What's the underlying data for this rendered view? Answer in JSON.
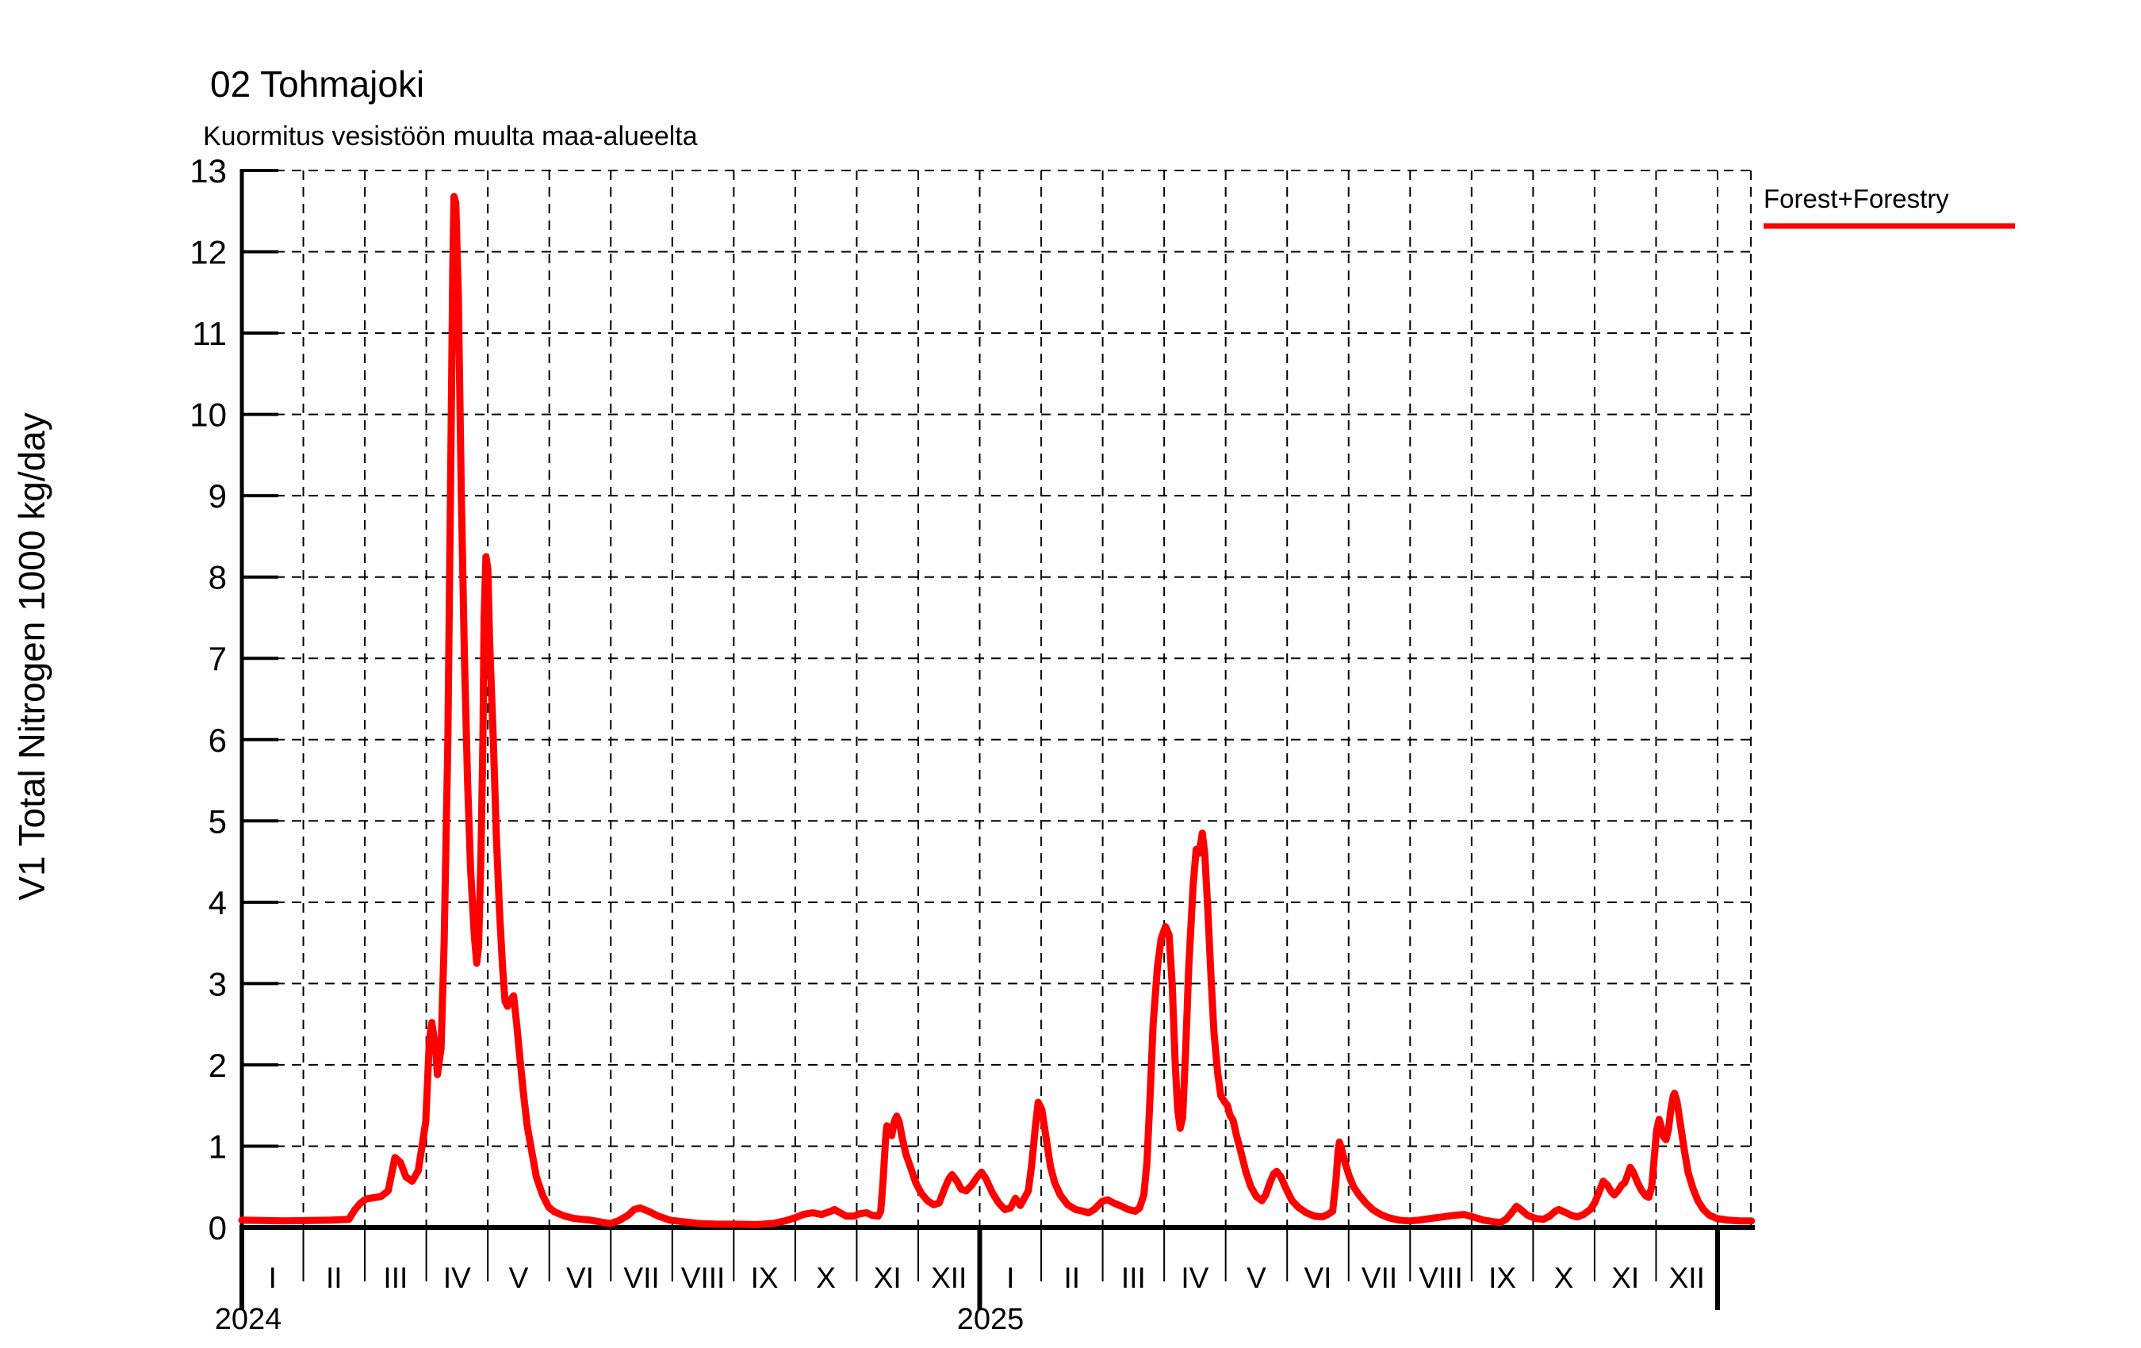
{
  "title": "02 Tohmajoki",
  "subtitle": "Kuormitus vesistöön muulta maa-alueelta",
  "y_axis": {
    "label": "V1 Total Nitrogen 1000 kg/day",
    "min": 0,
    "max": 13,
    "ticks": [
      0,
      1,
      2,
      3,
      4,
      5,
      6,
      7,
      8,
      9,
      10,
      11,
      12,
      13
    ]
  },
  "x_axis": {
    "month_labels": [
      "I",
      "II",
      "III",
      "IV",
      "V",
      "VI",
      "VII",
      "VIII",
      "IX",
      "X",
      "XI",
      "XII"
    ],
    "years": [
      {
        "label": "2024"
      },
      {
        "label": "2025"
      }
    ]
  },
  "legend": {
    "label": "Forest+Forestry"
  },
  "colors": {
    "series": "#ff0000",
    "axis": "#000000",
    "grid": "#000000",
    "background": "#ffffff"
  },
  "chart_data": {
    "type": "line",
    "title": "02 Tohmajoki",
    "subtitle": "Kuormitus vesistöön muulta maa-alueelta",
    "ylabel": "V1 Total Nitrogen 1000 kg/day",
    "ylim": [
      0,
      13
    ],
    "x_unit": "months since 2024-01-01",
    "xlim": [
      0,
      24.55
    ],
    "grid": true,
    "legend_position": "top-right",
    "x_tick_labels_2024": [
      "I",
      "II",
      "III",
      "IV",
      "V",
      "VI",
      "VII",
      "VIII",
      "IX",
      "X",
      "XI",
      "XII"
    ],
    "x_tick_labels_2025": [
      "I",
      "II",
      "III",
      "IV",
      "V",
      "VI",
      "VII",
      "VIII",
      "IX",
      "X",
      "XI",
      "XII"
    ],
    "series": [
      {
        "name": "Forest+Forestry",
        "color": "#ff0000",
        "points": [
          [
            0,
            0.09
          ],
          [
            0.7,
            0.08
          ],
          [
            1.45,
            0.09
          ],
          [
            1.74,
            0.1
          ],
          [
            1.84,
            0.22
          ],
          [
            1.93,
            0.3
          ],
          [
            2.02,
            0.35
          ],
          [
            2.26,
            0.38
          ],
          [
            2.38,
            0.45
          ],
          [
            2.49,
            0.86
          ],
          [
            2.58,
            0.8
          ],
          [
            2.67,
            0.62
          ],
          [
            2.77,
            0.57
          ],
          [
            2.87,
            0.7
          ],
          [
            2.99,
            1.3
          ],
          [
            3.05,
            2.3
          ],
          [
            3.09,
            2.52
          ],
          [
            3.15,
            2.2
          ],
          [
            3.18,
            1.88
          ],
          [
            3.24,
            2.2
          ],
          [
            3.29,
            3.5
          ],
          [
            3.35,
            6
          ],
          [
            3.4,
            9.5
          ],
          [
            3.43,
            11.8
          ],
          [
            3.45,
            12.68
          ],
          [
            3.48,
            12.6
          ],
          [
            3.52,
            11.5
          ],
          [
            3.57,
            9
          ],
          [
            3.62,
            7
          ],
          [
            3.67,
            5.5
          ],
          [
            3.72,
            4.4
          ],
          [
            3.78,
            3.6
          ],
          [
            3.82,
            3.25
          ],
          [
            3.85,
            3.45
          ],
          [
            3.89,
            4.6
          ],
          [
            3.92,
            6
          ],
          [
            3.94,
            7.5
          ],
          [
            3.97,
            8.25
          ],
          [
            4,
            8.1
          ],
          [
            4.03,
            7.2
          ],
          [
            4.09,
            6
          ],
          [
            4.14,
            4.8
          ],
          [
            4.19,
            3.9
          ],
          [
            4.24,
            3.2
          ],
          [
            4.28,
            2.78
          ],
          [
            4.32,
            2.72
          ],
          [
            4.37,
            2.8
          ],
          [
            4.42,
            2.85
          ],
          [
            4.47,
            2.5
          ],
          [
            4.52,
            2.1
          ],
          [
            4.58,
            1.65
          ],
          [
            4.64,
            1.25
          ],
          [
            4.7,
            1
          ],
          [
            4.79,
            0.62
          ],
          [
            4.89,
            0.4
          ],
          [
            4.99,
            0.25
          ],
          [
            5.09,
            0.19
          ],
          [
            5.25,
            0.14
          ],
          [
            5.41,
            0.11
          ],
          [
            5.67,
            0.09
          ],
          [
            5.89,
            0.06
          ],
          [
            5.99,
            0.05
          ],
          [
            6.12,
            0.08
          ],
          [
            6.28,
            0.15
          ],
          [
            6.38,
            0.22
          ],
          [
            6.48,
            0.24
          ],
          [
            6.61,
            0.2
          ],
          [
            6.77,
            0.14
          ],
          [
            6.96,
            0.09
          ],
          [
            7.18,
            0.07
          ],
          [
            7.41,
            0.05
          ],
          [
            7.73,
            0.04
          ],
          [
            8.06,
            0.04
          ],
          [
            8.38,
            0.035
          ],
          [
            8.64,
            0.05
          ],
          [
            8.83,
            0.08
          ],
          [
            9,
            0.12
          ],
          [
            9.13,
            0.16
          ],
          [
            9.28,
            0.18
          ],
          [
            9.43,
            0.16
          ],
          [
            9.58,
            0.2
          ],
          [
            9.64,
            0.22
          ],
          [
            9.73,
            0.18
          ],
          [
            9.83,
            0.14
          ],
          [
            9.96,
            0.14
          ],
          [
            10.05,
            0.17
          ],
          [
            10.16,
            0.18
          ],
          [
            10.25,
            0.15
          ],
          [
            10.35,
            0.14
          ],
          [
            10.39,
            0.2
          ],
          [
            10.43,
            0.6
          ],
          [
            10.47,
            1.1
          ],
          [
            10.49,
            1.25
          ],
          [
            10.53,
            1.18
          ],
          [
            10.57,
            1.13
          ],
          [
            10.61,
            1.3
          ],
          [
            10.65,
            1.37
          ],
          [
            10.69,
            1.3
          ],
          [
            10.74,
            1.1
          ],
          [
            10.8,
            0.9
          ],
          [
            10.87,
            0.75
          ],
          [
            10.96,
            0.55
          ],
          [
            11.05,
            0.42
          ],
          [
            11.15,
            0.33
          ],
          [
            11.25,
            0.28
          ],
          [
            11.34,
            0.3
          ],
          [
            11.43,
            0.48
          ],
          [
            11.5,
            0.6
          ],
          [
            11.55,
            0.65
          ],
          [
            11.63,
            0.57
          ],
          [
            11.7,
            0.47
          ],
          [
            11.78,
            0.45
          ],
          [
            11.87,
            0.52
          ],
          [
            11.96,
            0.62
          ],
          [
            12.03,
            0.68
          ],
          [
            12.1,
            0.6
          ],
          [
            12.21,
            0.42
          ],
          [
            12.31,
            0.3
          ],
          [
            12.41,
            0.22
          ],
          [
            12.5,
            0.24
          ],
          [
            12.58,
            0.36
          ],
          [
            12.66,
            0.27
          ],
          [
            12.79,
            0.45
          ],
          [
            12.85,
            0.8
          ],
          [
            12.9,
            1.2
          ],
          [
            12.95,
            1.54
          ],
          [
            13.01,
            1.45
          ],
          [
            13.07,
            1.15
          ],
          [
            13.15,
            0.75
          ],
          [
            13.22,
            0.55
          ],
          [
            13.31,
            0.4
          ],
          [
            13.43,
            0.28
          ],
          [
            13.56,
            0.22
          ],
          [
            13.68,
            0.2
          ],
          [
            13.77,
            0.18
          ],
          [
            13.86,
            0.22
          ],
          [
            13.99,
            0.32
          ],
          [
            14.08,
            0.34
          ],
          [
            14.18,
            0.3
          ],
          [
            14.31,
            0.26
          ],
          [
            14.42,
            0.22
          ],
          [
            14.53,
            0.2
          ],
          [
            14.6,
            0.24
          ],
          [
            14.67,
            0.4
          ],
          [
            14.72,
            0.8
          ],
          [
            14.77,
            1.6
          ],
          [
            14.82,
            2.5
          ],
          [
            14.89,
            3.2
          ],
          [
            14.95,
            3.55
          ],
          [
            15.02,
            3.7
          ],
          [
            15.08,
            3.6
          ],
          [
            15.13,
            3
          ],
          [
            15.18,
            2
          ],
          [
            15.22,
            1.45
          ],
          [
            15.26,
            1.22
          ],
          [
            15.3,
            1.35
          ],
          [
            15.35,
            2.2
          ],
          [
            15.4,
            3.2
          ],
          [
            15.47,
            4.2
          ],
          [
            15.52,
            4.65
          ],
          [
            15.56,
            4.6
          ],
          [
            15.6,
            4.75
          ],
          [
            15.62,
            4.85
          ],
          [
            15.66,
            4.6
          ],
          [
            15.71,
            3.9
          ],
          [
            15.76,
            3.1
          ],
          [
            15.81,
            2.4
          ],
          [
            15.87,
            1.9
          ],
          [
            15.92,
            1.62
          ],
          [
            15.98,
            1.55
          ],
          [
            16.03,
            1.5
          ],
          [
            16.07,
            1.38
          ],
          [
            16.12,
            1.32
          ],
          [
            16.17,
            1.15
          ],
          [
            16.24,
            0.95
          ],
          [
            16.33,
            0.68
          ],
          [
            16.41,
            0.5
          ],
          [
            16.5,
            0.38
          ],
          [
            16.59,
            0.33
          ],
          [
            16.65,
            0.4
          ],
          [
            16.72,
            0.55
          ],
          [
            16.78,
            0.66
          ],
          [
            16.83,
            0.69
          ],
          [
            16.9,
            0.62
          ],
          [
            16.98,
            0.48
          ],
          [
            17.08,
            0.33
          ],
          [
            17.18,
            0.25
          ],
          [
            17.31,
            0.18
          ],
          [
            17.44,
            0.14
          ],
          [
            17.57,
            0.13
          ],
          [
            17.66,
            0.16
          ],
          [
            17.74,
            0.2
          ],
          [
            17.79,
            0.55
          ],
          [
            17.83,
            0.95
          ],
          [
            17.85,
            1.05
          ],
          [
            17.89,
            0.95
          ],
          [
            17.94,
            0.8
          ],
          [
            18.01,
            0.63
          ],
          [
            18.08,
            0.5
          ],
          [
            18.17,
            0.4
          ],
          [
            18.28,
            0.3
          ],
          [
            18.39,
            0.22
          ],
          [
            18.52,
            0.16
          ],
          [
            18.65,
            0.12
          ],
          [
            18.82,
            0.09
          ],
          [
            18.99,
            0.08
          ],
          [
            19.14,
            0.09
          ],
          [
            19.33,
            0.11
          ],
          [
            19.53,
            0.13
          ],
          [
            19.72,
            0.15
          ],
          [
            19.88,
            0.16
          ],
          [
            20.02,
            0.13
          ],
          [
            20.2,
            0.09
          ],
          [
            20.36,
            0.07
          ],
          [
            20.47,
            0.06
          ],
          [
            20.56,
            0.1
          ],
          [
            20.65,
            0.18
          ],
          [
            20.73,
            0.26
          ],
          [
            20.8,
            0.22
          ],
          [
            20.91,
            0.15
          ],
          [
            21.04,
            0.11
          ],
          [
            21.17,
            0.1
          ],
          [
            21.27,
            0.14
          ],
          [
            21.36,
            0.2
          ],
          [
            21.42,
            0.22
          ],
          [
            21.51,
            0.19
          ],
          [
            21.62,
            0.15
          ],
          [
            21.72,
            0.13
          ],
          [
            21.82,
            0.16
          ],
          [
            21.93,
            0.22
          ],
          [
            22,
            0.3
          ],
          [
            22.08,
            0.45
          ],
          [
            22.14,
            0.57
          ],
          [
            22.21,
            0.52
          ],
          [
            22.27,
            0.44
          ],
          [
            22.32,
            0.4
          ],
          [
            22.39,
            0.46
          ],
          [
            22.44,
            0.52
          ],
          [
            22.49,
            0.55
          ],
          [
            22.54,
            0.65
          ],
          [
            22.58,
            0.74
          ],
          [
            22.63,
            0.68
          ],
          [
            22.7,
            0.55
          ],
          [
            22.76,
            0.46
          ],
          [
            22.83,
            0.39
          ],
          [
            22.88,
            0.37
          ],
          [
            22.93,
            0.5
          ],
          [
            22.97,
            0.85
          ],
          [
            23.01,
            1.2
          ],
          [
            23.05,
            1.33
          ],
          [
            23.08,
            1.25
          ],
          [
            23.12,
            1.12
          ],
          [
            23.16,
            1.08
          ],
          [
            23.2,
            1.2
          ],
          [
            23.24,
            1.45
          ],
          [
            23.28,
            1.62
          ],
          [
            23.3,
            1.65
          ],
          [
            23.34,
            1.55
          ],
          [
            23.39,
            1.3
          ],
          [
            23.46,
            0.95
          ],
          [
            23.52,
            0.68
          ],
          [
            23.6,
            0.48
          ],
          [
            23.68,
            0.33
          ],
          [
            23.77,
            0.22
          ],
          [
            23.87,
            0.15
          ],
          [
            23.99,
            0.11
          ],
          [
            24.17,
            0.09
          ],
          [
            24.36,
            0.08
          ],
          [
            24.55,
            0.08
          ]
        ]
      }
    ]
  }
}
